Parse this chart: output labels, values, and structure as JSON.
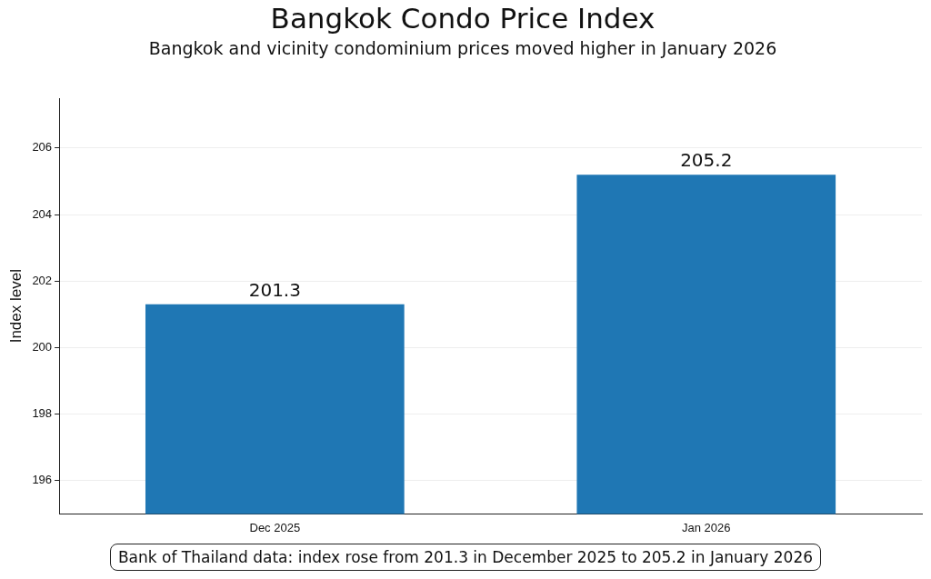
{
  "chart_data": {
    "type": "bar",
    "title": "Bangkok Condo Price Index",
    "subtitle": "Bangkok and vicinity condominium prices moved higher in January 2026",
    "ylabel": "Index level",
    "categories": [
      "Dec 2025",
      "Jan 2026"
    ],
    "values": [
      201.3,
      205.2
    ],
    "color": "#1f77b4",
    "ylim": [
      195,
      207.5
    ],
    "yticks": [
      196,
      198,
      200,
      202,
      204,
      206
    ],
    "grid": "y",
    "data_labels": true,
    "annotations": [
      "Bank of Thailand data: index rose from 201.3 in December 2025 to 205.2 in January 2026"
    ]
  }
}
